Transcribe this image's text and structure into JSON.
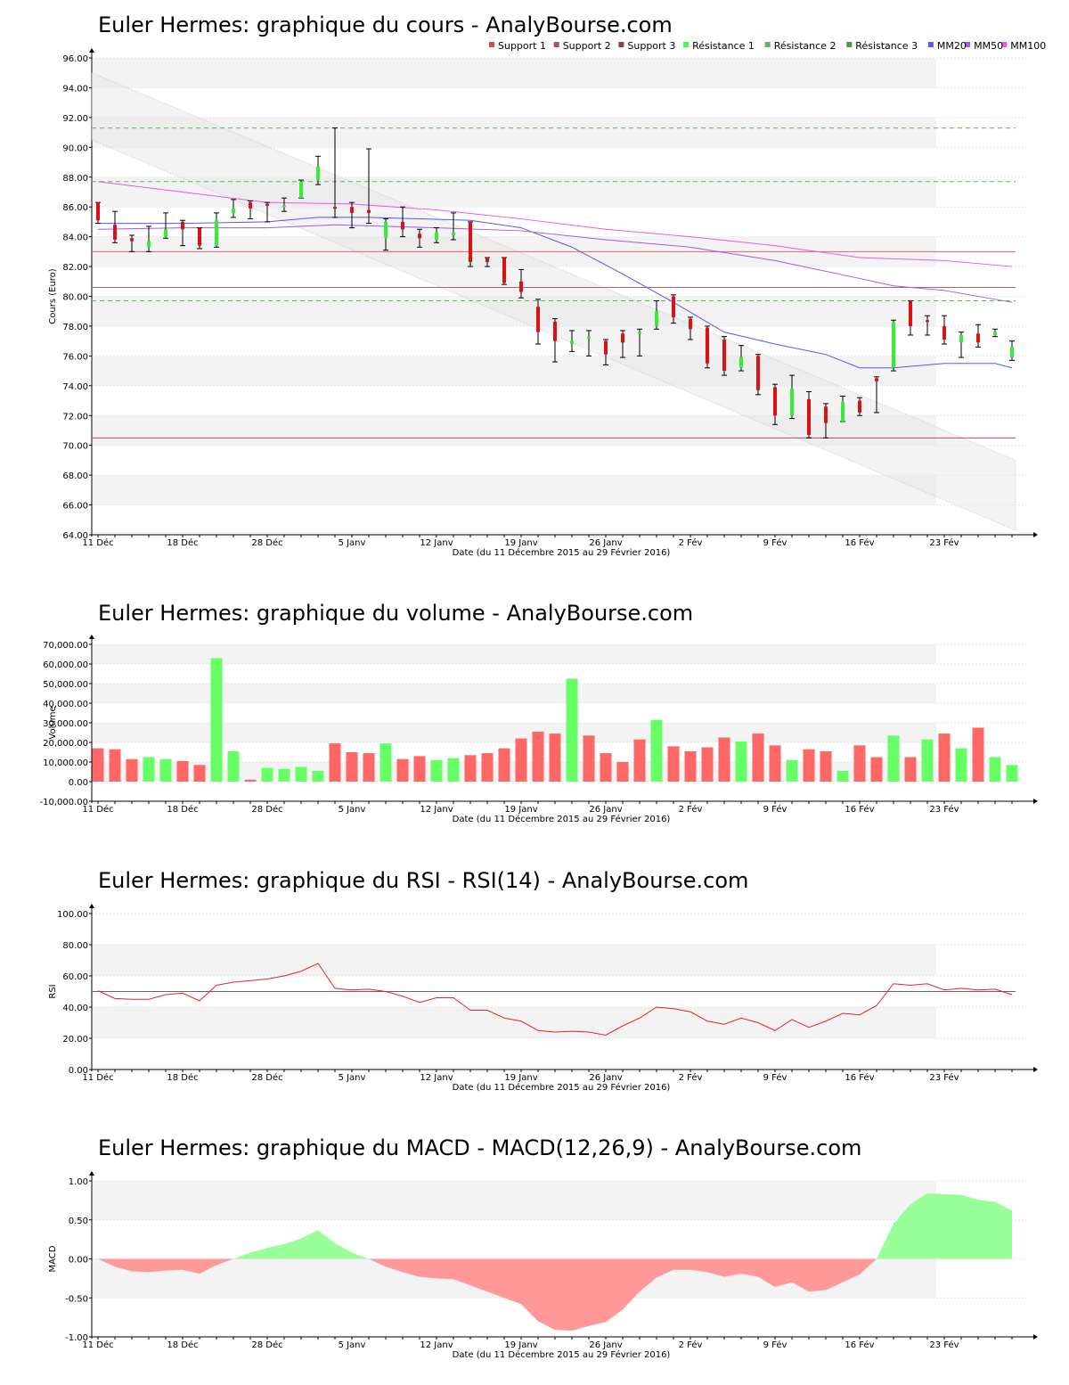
{
  "xaxis": {
    "label": "Date (du 11 Décembre 2015 au 29 Février 2016)",
    "ticks": [
      {
        "i": 0,
        "label": "11 Déc"
      },
      {
        "i": 5,
        "label": "18 Déc"
      },
      {
        "i": 10,
        "label": "28 Déc"
      },
      {
        "i": 15,
        "label": "5 Janv"
      },
      {
        "i": 20,
        "label": "12 Janv"
      },
      {
        "i": 25,
        "label": "19 Janv"
      },
      {
        "i": 30,
        "label": "26 Janv"
      },
      {
        "i": 35,
        "label": "2 Fév"
      },
      {
        "i": 40,
        "label": "9 Fév"
      },
      {
        "i": 45,
        "label": "16 Fév"
      },
      {
        "i": 50,
        "label": "23 Fév"
      }
    ]
  },
  "chart_data": [
    {
      "id": "price",
      "type": "candlestick",
      "title": "Euler Hermes: graphique du cours - AnalyBourse.com",
      "ylabel": "Cours (Euro)",
      "ylim": [
        64,
        96
      ],
      "ystep": 2,
      "ydecimals": 2,
      "grid": true,
      "legend_position": "top-right",
      "legend": [
        {
          "label": "Support 1",
          "color": "#dd4444"
        },
        {
          "label": "Support 2",
          "color": "#aa5555"
        },
        {
          "label": "Support 3",
          "color": "#884444"
        },
        {
          "label": "Résistance 1",
          "color": "#55ee55"
        },
        {
          "label": "Résistance 2",
          "color": "#55bb55"
        },
        {
          "label": "Résistance 3",
          "color": "#449944"
        },
        {
          "label": "MM20",
          "color": "#5555ff"
        },
        {
          "label": "MM50",
          "color": "#aa55ee"
        },
        {
          "label": "MM100",
          "color": "#ee55ee"
        }
      ],
      "candles": [
        {
          "o": 86.3,
          "c": 85.1,
          "h": 86.3,
          "l": 84.9
        },
        {
          "o": 84.8,
          "c": 83.8,
          "h": 85.7,
          "l": 83.6
        },
        {
          "o": 83.9,
          "c": 83.7,
          "h": 84.1,
          "l": 83.0
        },
        {
          "o": 83.3,
          "c": 83.7,
          "h": 84.7,
          "l": 83.0
        },
        {
          "o": 84.0,
          "c": 84.5,
          "h": 85.6,
          "l": 83.9
        },
        {
          "o": 85.0,
          "c": 84.5,
          "h": 85.1,
          "l": 83.4
        },
        {
          "o": 84.6,
          "c": 83.4,
          "h": 84.6,
          "l": 83.2
        },
        {
          "o": 83.4,
          "c": 85.1,
          "h": 85.6,
          "l": 83.3
        },
        {
          "o": 85.6,
          "c": 85.9,
          "h": 86.5,
          "l": 85.3
        },
        {
          "o": 86.3,
          "c": 85.9,
          "h": 86.4,
          "l": 85.2
        },
        {
          "o": 86.2,
          "c": 86.1,
          "h": 86.3,
          "l": 85.0
        },
        {
          "o": 86.0,
          "c": 86.1,
          "h": 86.6,
          "l": 85.7
        },
        {
          "o": 86.6,
          "c": 87.7,
          "h": 87.8,
          "l": 86.6
        },
        {
          "o": 87.8,
          "c": 88.7,
          "h": 89.4,
          "l": 87.5
        },
        {
          "o": 86.0,
          "c": 85.9,
          "h": 91.3,
          "l": 85.3
        },
        {
          "o": 86.0,
          "c": 85.6,
          "h": 86.3,
          "l": 84.6
        },
        {
          "o": 85.8,
          "c": 85.6,
          "h": 89.9,
          "l": 84.9
        },
        {
          "o": 83.9,
          "c": 85.0,
          "h": 85.2,
          "l": 83.1
        },
        {
          "o": 85.0,
          "c": 84.5,
          "h": 86.0,
          "l": 84.0
        },
        {
          "o": 84.2,
          "c": 83.9,
          "h": 84.5,
          "l": 83.3
        },
        {
          "o": 83.8,
          "c": 84.3,
          "h": 84.6,
          "l": 83.6
        },
        {
          "o": 84.1,
          "c": 84.3,
          "h": 85.6,
          "l": 83.8
        },
        {
          "o": 85.0,
          "c": 82.3,
          "h": 85.0,
          "l": 82.0
        },
        {
          "o": 82.6,
          "c": 82.3,
          "h": 82.6,
          "l": 82.0
        },
        {
          "o": 82.6,
          "c": 80.9,
          "h": 82.6,
          "l": 80.8
        },
        {
          "o": 81.0,
          "c": 80.3,
          "h": 81.8,
          "l": 79.9
        },
        {
          "o": 79.3,
          "c": 77.6,
          "h": 79.8,
          "l": 76.8
        },
        {
          "o": 78.3,
          "c": 77.0,
          "h": 78.5,
          "l": 75.6
        },
        {
          "o": 76.8,
          "c": 77.0,
          "h": 77.7,
          "l": 76.3
        },
        {
          "o": 77.2,
          "c": 77.3,
          "h": 77.7,
          "l": 76.0
        },
        {
          "o": 77.0,
          "c": 76.1,
          "h": 77.1,
          "l": 75.4
        },
        {
          "o": 77.5,
          "c": 76.9,
          "h": 77.7,
          "l": 75.9
        },
        {
          "o": 77.5,
          "c": 77.6,
          "h": 77.8,
          "l": 76.0
        },
        {
          "o": 78.0,
          "c": 79.0,
          "h": 79.7,
          "l": 77.8
        },
        {
          "o": 80.0,
          "c": 78.6,
          "h": 80.1,
          "l": 78.2
        },
        {
          "o": 78.5,
          "c": 77.8,
          "h": 78.6,
          "l": 77.1
        },
        {
          "o": 77.9,
          "c": 75.5,
          "h": 78.0,
          "l": 75.2
        },
        {
          "o": 77.1,
          "c": 75.0,
          "h": 77.3,
          "l": 74.7
        },
        {
          "o": 75.2,
          "c": 75.9,
          "h": 76.7,
          "l": 75.0
        },
        {
          "o": 76.0,
          "c": 73.7,
          "h": 76.1,
          "l": 73.4
        },
        {
          "o": 73.9,
          "c": 72.0,
          "h": 74.1,
          "l": 71.4
        },
        {
          "o": 72.0,
          "c": 73.8,
          "h": 74.7,
          "l": 71.8
        },
        {
          "o": 73.1,
          "c": 70.7,
          "h": 73.6,
          "l": 70.5
        },
        {
          "o": 72.6,
          "c": 71.5,
          "h": 72.8,
          "l": 70.5
        },
        {
          "o": 71.6,
          "c": 72.9,
          "h": 73.3,
          "l": 71.6
        },
        {
          "o": 73.0,
          "c": 72.2,
          "h": 73.2,
          "l": 72.0
        },
        {
          "o": 74.5,
          "c": 74.3,
          "h": 74.6,
          "l": 72.2
        },
        {
          "o": 75.2,
          "c": 78.3,
          "h": 78.4,
          "l": 75.0
        },
        {
          "o": 79.7,
          "c": 78.0,
          "h": 79.7,
          "l": 77.4
        },
        {
          "o": 78.4,
          "c": 78.3,
          "h": 78.7,
          "l": 77.4
        },
        {
          "o": 78.0,
          "c": 77.1,
          "h": 78.7,
          "l": 76.8
        },
        {
          "o": 76.9,
          "c": 77.4,
          "h": 77.6,
          "l": 75.9
        },
        {
          "o": 77.5,
          "c": 76.9,
          "h": 78.1,
          "l": 76.6
        },
        {
          "o": 77.4,
          "c": 77.6,
          "h": 77.8,
          "l": 77.3
        },
        {
          "o": 75.9,
          "c": 76.6,
          "h": 77.0,
          "l": 75.7
        }
      ],
      "levels": [
        {
          "value": 83.0,
          "color": "#dd6666",
          "dash": false
        },
        {
          "value": 80.6,
          "color": "#aa6666",
          "dash": false
        },
        {
          "value": 70.5,
          "color": "#aa5555",
          "dash": false
        },
        {
          "value": 79.7,
          "color": "#55bb55",
          "dash": true
        },
        {
          "value": 87.7,
          "color": "#55bb55",
          "dash": true
        },
        {
          "value": 91.3,
          "color": "#55bb55",
          "dash": true
        }
      ],
      "channel": {
        "start": [
          95.0,
          90.5
        ],
        "end": [
          69.0,
          64.3
        ]
      },
      "moving_averages": [
        {
          "label": "MM20",
          "color": "#5555ff",
          "points": [
            [
              0,
              84.9
            ],
            [
              5,
              84.9
            ],
            [
              10,
              85.0
            ],
            [
              13,
              85.3
            ],
            [
              16,
              85.3
            ],
            [
              22,
              85.1
            ],
            [
              25,
              84.6
            ],
            [
              28,
              83.3
            ],
            [
              31,
              81.5
            ],
            [
              34,
              79.6
            ],
            [
              37,
              77.6
            ],
            [
              40,
              76.8
            ],
            [
              43,
              76.1
            ],
            [
              45,
              75.2
            ],
            [
              47,
              75.2
            ],
            [
              50,
              75.5
            ],
            [
              53,
              75.5
            ],
            [
              54,
              75.2
            ]
          ]
        },
        {
          "label": "MM50",
          "color": "#aa55ee",
          "points": [
            [
              0,
              84.5
            ],
            [
              5,
              84.6
            ],
            [
              10,
              84.6
            ],
            [
              14,
              84.8
            ],
            [
              20,
              84.6
            ],
            [
              25,
              84.4
            ],
            [
              30,
              83.8
            ],
            [
              35,
              83.3
            ],
            [
              40,
              82.4
            ],
            [
              45,
              81.2
            ],
            [
              47,
              80.7
            ],
            [
              50,
              80.4
            ],
            [
              54,
              79.6
            ]
          ]
        },
        {
          "label": "MM100",
          "color": "#ee55ee",
          "points": [
            [
              0,
              87.7
            ],
            [
              5,
              87.0
            ],
            [
              10,
              86.3
            ],
            [
              15,
              86.2
            ],
            [
              20,
              85.8
            ],
            [
              25,
              85.2
            ],
            [
              30,
              84.5
            ],
            [
              35,
              84.0
            ],
            [
              40,
              83.4
            ],
            [
              45,
              82.6
            ],
            [
              50,
              82.4
            ],
            [
              54,
              82.0
            ]
          ]
        }
      ]
    },
    {
      "id": "volume",
      "type": "bar",
      "title": "Euler Hermes: graphique du volume - AnalyBourse.com",
      "ylabel": "Volume",
      "ylim": [
        -10000,
        70000
      ],
      "ystep": 10000,
      "ydecimals": 2,
      "grid": true,
      "values": [
        17000,
        16500,
        11500,
        12500,
        11500,
        10500,
        8500,
        63000,
        15500,
        1000,
        7000,
        6500,
        7500,
        5500,
        19500,
        15000,
        14500,
        19500,
        11500,
        13000,
        11000,
        12000,
        13500,
        14500,
        17000,
        22000,
        25500,
        24500,
        52500,
        23500,
        14500,
        10000,
        21500,
        31500,
        18000,
        15500,
        17500,
        22500,
        20500,
        24500,
        18500,
        11000,
        16500,
        15500,
        5500,
        18500,
        12500,
        23500,
        12500,
        21500,
        24500,
        17000,
        27500,
        12500,
        8500
      ],
      "up": [
        false,
        false,
        false,
        true,
        true,
        false,
        false,
        true,
        true,
        false,
        true,
        true,
        true,
        true,
        false,
        false,
        false,
        true,
        false,
        false,
        true,
        true,
        false,
        false,
        false,
        false,
        false,
        false,
        true,
        false,
        false,
        false,
        false,
        true,
        false,
        false,
        false,
        false,
        true,
        false,
        false,
        true,
        false,
        false,
        true,
        false,
        false,
        true,
        false,
        true,
        false,
        true,
        false,
        true,
        true
      ]
    },
    {
      "id": "rsi",
      "type": "line",
      "title": "Euler Hermes: graphique du RSI - RSI(14) - AnalyBourse.com",
      "ylabel": "RSI",
      "ylim": [
        0,
        100
      ],
      "ystep": 20,
      "ydecimals": 2,
      "grid": true,
      "reference": 50,
      "values": [
        50.5,
        45.5,
        45,
        45,
        48,
        49,
        44,
        54,
        56,
        57,
        58,
        60,
        63,
        68,
        52,
        51,
        51.5,
        50,
        47,
        43,
        46,
        46,
        38,
        38,
        33,
        31,
        25,
        24,
        24.5,
        24,
        22,
        28,
        33,
        40,
        39,
        37,
        31,
        29,
        33,
        30,
        25,
        32,
        27,
        31,
        36,
        35,
        41,
        55,
        54,
        55,
        51,
        52,
        51,
        51.5,
        48
      ]
    },
    {
      "id": "macd",
      "type": "area",
      "title": "Euler Hermes: graphique du MACD - MACD(12,26,9) - AnalyBourse.com",
      "ylabel": "MACD",
      "ylim": [
        -1,
        1
      ],
      "ystep": 0.5,
      "ydecimals": 2,
      "grid": true,
      "values": [
        0.0,
        -0.1,
        -0.16,
        -0.17,
        -0.15,
        -0.14,
        -0.19,
        -0.08,
        0.0,
        0.08,
        0.14,
        0.19,
        0.26,
        0.37,
        0.2,
        0.08,
        0.0,
        -0.1,
        -0.17,
        -0.23,
        -0.25,
        -0.26,
        -0.34,
        -0.42,
        -0.5,
        -0.58,
        -0.8,
        -0.91,
        -0.92,
        -0.86,
        -0.81,
        -0.65,
        -0.42,
        -0.24,
        -0.14,
        -0.14,
        -0.17,
        -0.23,
        -0.19,
        -0.23,
        -0.36,
        -0.3,
        -0.42,
        -0.4,
        -0.3,
        -0.2,
        0.0,
        0.45,
        0.7,
        0.84,
        0.83,
        0.82,
        0.76,
        0.73,
        0.62
      ]
    }
  ]
}
